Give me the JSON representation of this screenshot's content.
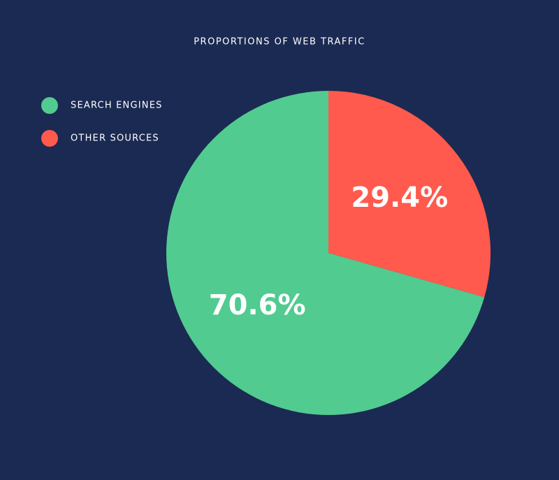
{
  "chart_data": {
    "type": "pie",
    "title": "PROPORTIONS OF WEB TRAFFIC",
    "categories": [
      "SEARCH ENGINES",
      "OTHER SOURCES"
    ],
    "values": [
      70.6,
      29.4
    ],
    "value_labels": [
      "70.6%",
      "29.4%"
    ],
    "colors": [
      "#51cb90",
      "#ff5a4d"
    ],
    "legend": "top-left"
  }
}
